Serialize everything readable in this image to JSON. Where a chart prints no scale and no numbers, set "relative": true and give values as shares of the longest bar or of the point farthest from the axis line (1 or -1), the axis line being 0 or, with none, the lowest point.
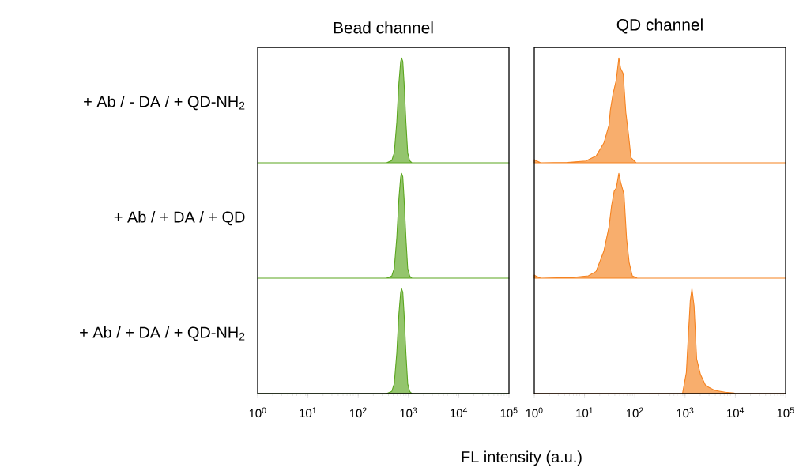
{
  "chart_data": [
    {
      "type": "area",
      "relative": true,
      "log": "x",
      "tick_labels": false,
      "title": "Bead channel",
      "ylabel": "+ Ab / - DA / + QD-NH$_{2}$",
      "xlim": [
        1,
        100000
      ],
      "x": [
        1,
        366,
        465,
        522,
        587,
        646,
        701,
        728,
        771,
        818,
        889,
        966,
        1060,
        1170,
        100000
      ],
      "series": [
        {
          "color": "#5aa51e",
          "values": [
            0,
            0,
            0.02,
            0.094,
            0.39,
            0.76,
            0.966,
            1,
            0.966,
            0.76,
            0.39,
            0.094,
            0.02,
            0,
            0
          ]
        }
      ]
    },
    {
      "type": "area",
      "relative": true,
      "log": "x",
      "tick_labels": false,
      "title": "QD channel",
      "xlim": [
        1,
        100000
      ],
      "x": [
        1,
        1.06,
        1.34,
        4.64,
        10.6,
        17.0,
        24.3,
        30.7,
        32.6,
        36.6,
        42.8,
        48.1,
        52.2,
        58.7,
        66.2,
        74.5,
        83.8,
        106,
        100000
      ],
      "series": [
        {
          "color": "#f5821f",
          "values": [
            0.03,
            0.023,
            0,
            0.003,
            0.017,
            0.065,
            0.19,
            0.36,
            0.5,
            0.65,
            0.79,
            1,
            0.9,
            0.85,
            0.48,
            0.28,
            0.05,
            0,
            0
          ]
        }
      ]
    },
    {
      "type": "area",
      "relative": true,
      "log": "x",
      "tick_labels": false,
      "ylabel": "+ Ab / + DA / + QD",
      "xlim": [
        1,
        100000
      ],
      "x": [
        1,
        366,
        465,
        522,
        587,
        646,
        701,
        728,
        771,
        818,
        889,
        966,
        1060,
        1170,
        100000
      ],
      "series": [
        {
          "color": "#5aa51e",
          "values": [
            0,
            0,
            0.02,
            0.094,
            0.39,
            0.76,
            0.966,
            1,
            0.966,
            0.76,
            0.39,
            0.094,
            0.02,
            0,
            0
          ]
        }
      ]
    },
    {
      "type": "area",
      "relative": true,
      "log": "x",
      "tick_labels": false,
      "xlim": [
        1,
        100000
      ],
      "x": [
        1,
        1.06,
        1.34,
        5.87,
        11.9,
        17.0,
        24.3,
        30.7,
        34.5,
        38.9,
        42.8,
        48.1,
        52.2,
        60.9,
        68.5,
        77.1,
        88.9,
        112,
        100000
      ],
      "series": [
        {
          "color": "#f5821f",
          "values": [
            0.03,
            0.023,
            0,
            0.008,
            0.023,
            0.065,
            0.26,
            0.49,
            0.69,
            0.83,
            0.86,
            1,
            0.915,
            0.8,
            0.377,
            0.15,
            0.023,
            0,
            0
          ]
        }
      ]
    },
    {
      "type": "area",
      "relative": true,
      "log": "x",
      "tick_labels": "x",
      "ylabel": "+ Ab / + DA / + QD-NH$_{2}$",
      "xlabel": "FL intensity (a.u.)",
      "xlim": [
        1,
        100000
      ],
      "xticks": [
        {
          "value": 1,
          "label": "10$^{0}$"
        },
        {
          "value": 10,
          "label": "10$^{1}$"
        },
        {
          "value": 100,
          "label": "10$^{2}$"
        },
        {
          "value": 1000,
          "label": "10$^{3}$"
        },
        {
          "value": 10000,
          "label": "10$^{4}$"
        },
        {
          "value": 100000,
          "label": "10$^{5}$"
        }
      ],
      "x": [
        1,
        366,
        465,
        522,
        587,
        646,
        701,
        728,
        771,
        818,
        889,
        966,
        1060,
        1170,
        100000
      ],
      "series": [
        {
          "color": "#5aa51e",
          "values": [
            0,
            0,
            0.02,
            0.094,
            0.39,
            0.76,
            0.966,
            1,
            0.966,
            0.76,
            0.39,
            0.094,
            0.02,
            0,
            0
          ]
        }
      ]
    },
    {
      "type": "area",
      "relative": true,
      "log": "x",
      "tick_labels": "x",
      "xlim": [
        1,
        100000
      ],
      "xticks": [
        {
          "value": 1,
          "label": "10$^{0}$"
        },
        {
          "value": 10,
          "label": "10$^{1}$"
        },
        {
          "value": 100,
          "label": "10$^{2}$"
        },
        {
          "value": 1000,
          "label": "10$^{3}$"
        },
        {
          "value": 10000,
          "label": "10$^{4}$"
        },
        {
          "value": 100000,
          "label": "10$^{5}$"
        }
      ],
      "x": [
        1,
        889,
        1060,
        1170,
        1270,
        1370,
        1510,
        1700,
        2030,
        2570,
        3890,
        6240,
        9420,
        9800,
        100000
      ],
      "series": [
        {
          "color": "#f5821f",
          "values": [
            0,
            0,
            0.2,
            0.58,
            0.886,
            1,
            0.835,
            0.33,
            0.18,
            0.076,
            0.03,
            0.013,
            0.005,
            0,
            0
          ]
        }
      ]
    }
  ]
}
